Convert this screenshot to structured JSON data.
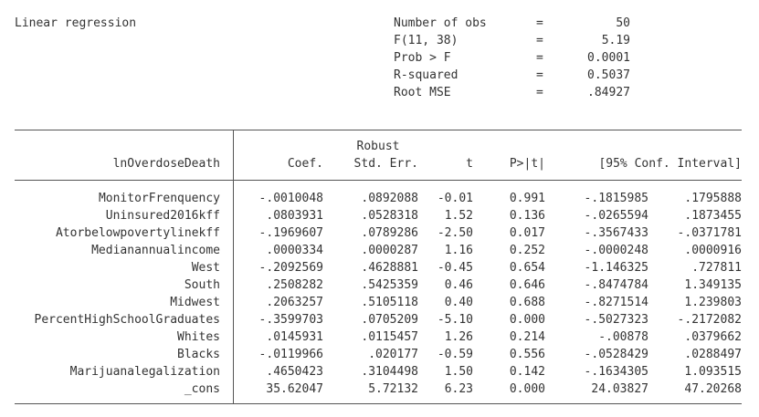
{
  "title": "Linear regression",
  "stats": [
    {
      "label": "Number of obs",
      "eq": "=",
      "value": "50"
    },
    {
      "label": "F(11, 38)",
      "eq": "=",
      "value": "5.19"
    },
    {
      "label": "Prob > F",
      "eq": "=",
      "value": "0.0001"
    },
    {
      "label": "R-squared",
      "eq": "=",
      "value": "0.5037"
    },
    {
      "label": "Root MSE",
      "eq": "=",
      "value": ".84927"
    }
  ],
  "header": {
    "depvar": "lnOverdoseDeath",
    "robust": "Robust",
    "coef": "Coef.",
    "se": "Std. Err.",
    "t": "t",
    "p": "P>|t|",
    "ci": "[95% Conf. Interval]"
  },
  "rows": [
    {
      "var": "MonitorFrenquency",
      "coef": "-.0010048",
      "se": ".0892088",
      "t": "-0.01",
      "p": "0.991",
      "lo": "-.1815985",
      "hi": ".1795888"
    },
    {
      "var": "Uninsured2016kff",
      "coef": ".0803931",
      "se": ".0528318",
      "t": "1.52",
      "p": "0.136",
      "lo": "-.0265594",
      "hi": ".1873455"
    },
    {
      "var": "Atorbelowpovertylinekff",
      "coef": "-.1969607",
      "se": ".0789286",
      "t": "-2.50",
      "p": "0.017",
      "lo": "-.3567433",
      "hi": "-.0371781"
    },
    {
      "var": "Medianannualincome",
      "coef": ".0000334",
      "se": ".0000287",
      "t": "1.16",
      "p": "0.252",
      "lo": "-.0000248",
      "hi": ".0000916"
    },
    {
      "var": "West",
      "coef": "-.2092569",
      "se": ".4628881",
      "t": "-0.45",
      "p": "0.654",
      "lo": "-1.146325",
      "hi": ".727811"
    },
    {
      "var": "South",
      "coef": ".2508282",
      "se": ".5425359",
      "t": "0.46",
      "p": "0.646",
      "lo": "-.8474784",
      "hi": "1.349135"
    },
    {
      "var": "Midwest",
      "coef": ".2063257",
      "se": ".5105118",
      "t": "0.40",
      "p": "0.688",
      "lo": "-.8271514",
      "hi": "1.239803"
    },
    {
      "var": "PercentHighSchoolGraduates",
      "coef": "-.3599703",
      "se": ".0705209",
      "t": "-5.10",
      "p": "0.000",
      "lo": "-.5027323",
      "hi": "-.2172082"
    },
    {
      "var": "Whites",
      "coef": ".0145931",
      "se": ".0115457",
      "t": "1.26",
      "p": "0.214",
      "lo": "-.00878",
      "hi": ".0379662"
    },
    {
      "var": "Blacks",
      "coef": "-.0119966",
      "se": ".020177",
      "t": "-0.59",
      "p": "0.556",
      "lo": "-.0528429",
      "hi": ".0288497"
    },
    {
      "var": "Marijuanalegalization",
      "coef": ".4650423",
      "se": ".3104498",
      "t": "1.50",
      "p": "0.142",
      "lo": "-.1634305",
      "hi": "1.093515"
    },
    {
      "var": "_cons",
      "coef": "35.62047",
      "se": "5.72132",
      "t": "6.23",
      "p": "0.000",
      "lo": "24.03827",
      "hi": "47.20268"
    }
  ]
}
